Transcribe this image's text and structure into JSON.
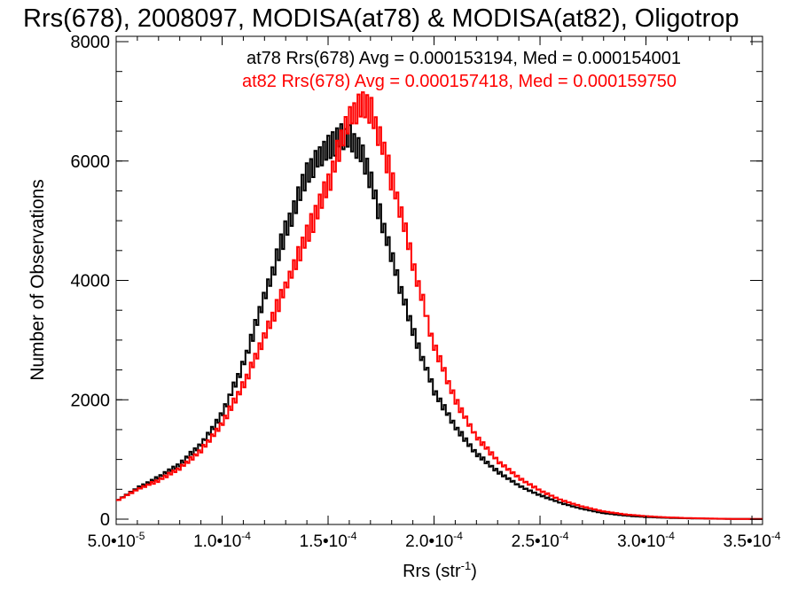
{
  "chart_data": {
    "type": "line",
    "title": "Rrs(678), 2008097, MODISA(at78) & MODISA(at82), Oligotrop",
    "xlabel": "Rrs (str",
    "xlabel_exp": "-1",
    "xlabel_close": ")",
    "ylabel": "Number of Observations",
    "xlim": [
      5e-05,
      0.000355
    ],
    "ylim": [
      0,
      8000
    ],
    "x_ticks": [
      {
        "mant": "5.0•10",
        "exp": "-5"
      },
      {
        "mant": "1.0•10",
        "exp": "-4"
      },
      {
        "mant": "1.5•10",
        "exp": "-4"
      },
      {
        "mant": "2.0•10",
        "exp": "-4"
      },
      {
        "mant": "2.5•10",
        "exp": "-4"
      },
      {
        "mant": "3.0•10",
        "exp": "-4"
      },
      {
        "mant": "3.5•10",
        "exp": "-4"
      }
    ],
    "x_tick_values": [
      5e-05,
      0.0001,
      0.00015,
      0.0002,
      0.00025,
      0.0003,
      0.00035
    ],
    "y_ticks": [
      "0",
      "2000",
      "4000",
      "6000",
      "8000"
    ],
    "y_tick_values": [
      0,
      2000,
      4000,
      6000,
      8000
    ],
    "annotations": [
      "at78 Rrs(678) Avg = 0.000153194, Med = 0.000154001",
      "at82 Rrs(678) Avg = 0.000157418, Med = 0.000159750"
    ],
    "series": [
      {
        "name": "at78",
        "color": "#000000",
        "x": [
          5e-05,
          6e-05,
          7e-05,
          8e-05,
          9e-05,
          0.0001,
          0.00011,
          0.00012,
          0.00013,
          0.00014,
          0.000145,
          0.00015,
          0.000155,
          0.00016,
          0.000165,
          0.00017,
          0.000175,
          0.00018,
          0.00019,
          0.0002,
          0.00021,
          0.00022,
          0.00023,
          0.00024,
          0.00025,
          0.00026,
          0.00027,
          0.00028,
          0.00029,
          0.0003,
          0.00031,
          0.00032,
          0.00033,
          0.00034,
          0.00035
        ],
        "y": [
          300,
          520,
          700,
          920,
          1250,
          1750,
          2600,
          3700,
          4850,
          5750,
          6050,
          6250,
          6380,
          6420,
          6200,
          5700,
          5050,
          4400,
          3150,
          2150,
          1550,
          1100,
          800,
          560,
          400,
          270,
          170,
          100,
          60,
          35,
          22,
          14,
          8,
          4,
          2
        ]
      },
      {
        "name": "at82",
        "color": "#ff0000",
        "x": [
          5e-05,
          6e-05,
          7e-05,
          8e-05,
          9e-05,
          0.0001,
          0.00011,
          0.00012,
          0.00013,
          0.00014,
          0.00015,
          0.000155,
          0.00016,
          0.000165,
          0.00017,
          0.000175,
          0.00018,
          0.000185,
          0.00019,
          0.0002,
          0.00021,
          0.00022,
          0.00023,
          0.00024,
          0.00025,
          0.00026,
          0.00027,
          0.00028,
          0.00029,
          0.0003,
          0.00031,
          0.00032,
          0.00033,
          0.00034,
          0.00035
        ],
        "y": [
          300,
          500,
          650,
          850,
          1150,
          1600,
          2250,
          3050,
          3900,
          4750,
          5600,
          6200,
          6700,
          6950,
          6850,
          6350,
          5700,
          5050,
          4300,
          2900,
          2000,
          1380,
          980,
          690,
          480,
          320,
          210,
          130,
          80,
          50,
          30,
          18,
          10,
          5,
          3
        ]
      }
    ]
  }
}
